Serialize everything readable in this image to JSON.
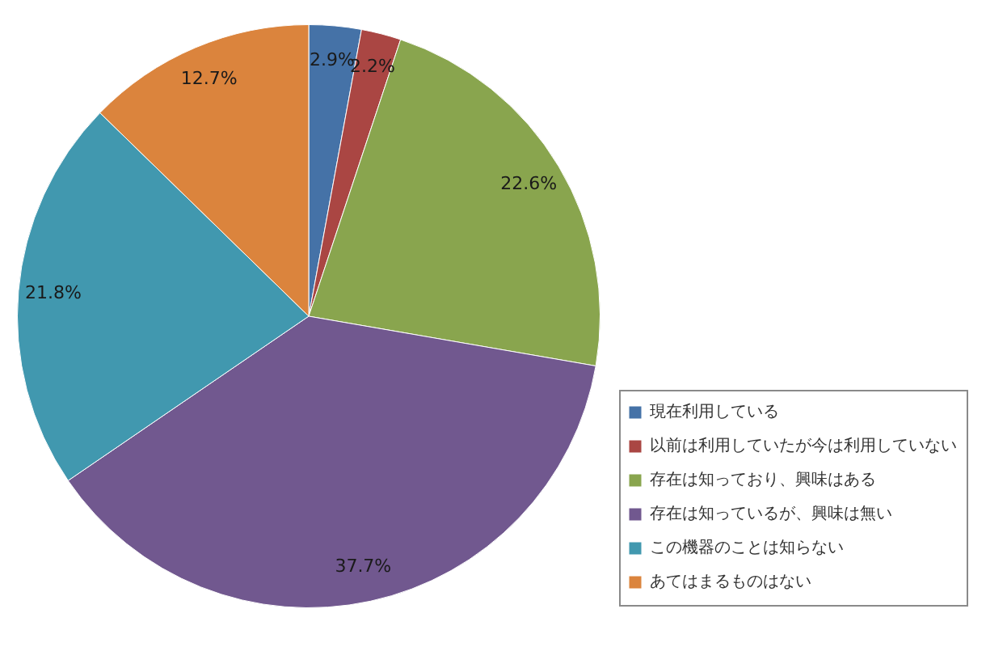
{
  "chart_data": {
    "type": "pie",
    "categories": [
      "現在利用している",
      "以前は利用していたが今は利用していない",
      "存在は知っており、興味はある",
      "存在は知っているが、興味は無い",
      "この機器のことは知らない",
      "あてはまるものはない"
    ],
    "values": [
      2.9,
      2.2,
      22.6,
      37.7,
      21.8,
      12.7
    ],
    "colors": [
      "#4572a7",
      "#aa4643",
      "#89a54e",
      "#71588f",
      "#4198af",
      "#db843d"
    ],
    "value_labels": [
      "2.9%",
      "2.2%",
      "22.6%",
      "37.7%",
      "21.8%",
      "12.7%"
    ],
    "legend": "bottom right"
  }
}
